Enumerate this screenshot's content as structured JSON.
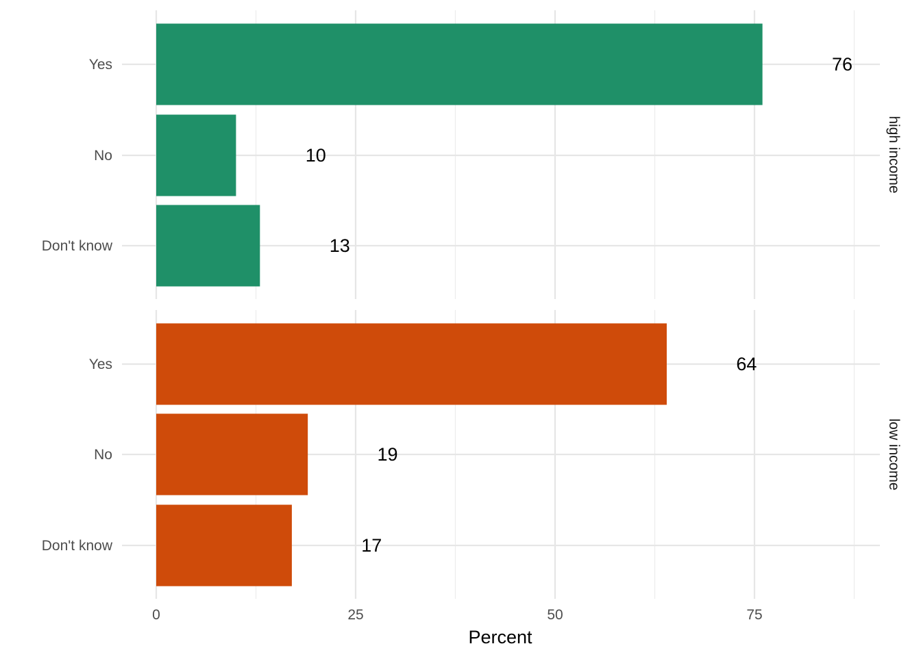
{
  "chart_data": {
    "type": "bar",
    "orientation": "horizontal",
    "xlabel": "Percent",
    "ylabel": "",
    "xlim": [
      0,
      90
    ],
    "x_ticks": [
      0,
      25,
      50,
      75
    ],
    "grid": true,
    "categories": [
      "Yes",
      "No",
      "Don't know"
    ],
    "panels": [
      {
        "name": "high income",
        "color": "#1f9068",
        "values": [
          76,
          10,
          13
        ]
      },
      {
        "name": "low income",
        "color": "#cf4b0a",
        "values": [
          64,
          19,
          17
        ]
      }
    ]
  }
}
